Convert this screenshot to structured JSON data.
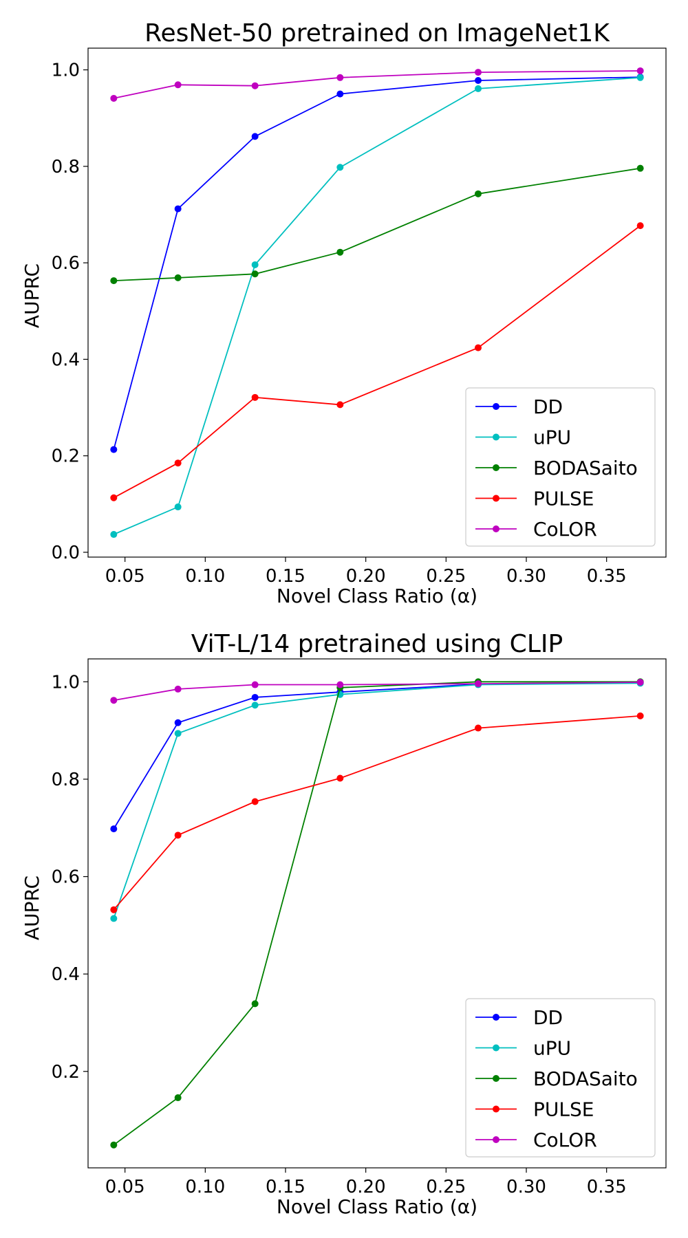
{
  "chart_data": [
    {
      "type": "line",
      "title": "ResNet-50 pretrained on ImageNet1K",
      "xlabel": "Novel Class Ratio (α)",
      "ylabel": "AUPRC",
      "x": [
        0.043,
        0.083,
        0.131,
        0.184,
        0.27,
        0.371
      ],
      "xlim": [
        0.027,
        0.387
      ],
      "ylim": [
        -0.01,
        1.045
      ],
      "xticks": [
        0.05,
        0.1,
        0.15,
        0.2,
        0.25,
        0.3,
        0.35
      ],
      "xtick_labels": [
        "0.05",
        "0.10",
        "0.15",
        "0.20",
        "0.25",
        "0.30",
        "0.35"
      ],
      "yticks": [
        0.0,
        0.2,
        0.4,
        0.6,
        0.8,
        1.0
      ],
      "ytick_labels": [
        "0.0",
        "0.2",
        "0.4",
        "0.6",
        "0.8",
        "1.0"
      ],
      "legend_position": "lower-right",
      "series": [
        {
          "name": "DD",
          "color": "#0000ff",
          "values": [
            0.213,
            0.712,
            0.862,
            0.95,
            0.978,
            0.985
          ]
        },
        {
          "name": "uPU",
          "color": "#00bfbf",
          "values": [
            0.037,
            0.094,
            0.596,
            0.798,
            0.961,
            0.984
          ]
        },
        {
          "name": "BODASaito",
          "color": "#008000",
          "values": [
            0.563,
            0.569,
            0.577,
            0.622,
            0.743,
            0.796
          ]
        },
        {
          "name": "PULSE",
          "color": "#ff0000",
          "values": [
            0.113,
            0.185,
            0.321,
            0.306,
            0.424,
            0.677
          ]
        },
        {
          "name": "CoLOR",
          "color": "#bf00bf",
          "values": [
            0.941,
            0.969,
            0.967,
            0.984,
            0.995,
            0.998
          ]
        }
      ]
    },
    {
      "type": "line",
      "title": "ViT-L/14 pretrained using CLIP",
      "xlabel": "Novel Class Ratio (α)",
      "ylabel": "AUPRC",
      "x": [
        0.043,
        0.083,
        0.131,
        0.184,
        0.27,
        0.371
      ],
      "xlim": [
        0.027,
        0.387
      ],
      "ylim": [
        0.002,
        1.047
      ],
      "xticks": [
        0.05,
        0.1,
        0.15,
        0.2,
        0.25,
        0.3,
        0.35
      ],
      "xtick_labels": [
        "0.05",
        "0.10",
        "0.15",
        "0.20",
        "0.25",
        "0.30",
        "0.35"
      ],
      "yticks": [
        0.2,
        0.4,
        0.6,
        0.8,
        1.0
      ],
      "ytick_labels": [
        "0.2",
        "0.4",
        "0.6",
        "0.8",
        "1.0"
      ],
      "legend_position": "lower-right",
      "series": [
        {
          "name": "DD",
          "color": "#0000ff",
          "values": [
            0.698,
            0.916,
            0.968,
            0.979,
            0.995,
            0.998
          ]
        },
        {
          "name": "uPU",
          "color": "#00bfbf",
          "values": [
            0.514,
            0.894,
            0.952,
            0.974,
            0.994,
            0.997
          ]
        },
        {
          "name": "BODASaito",
          "color": "#008000",
          "values": [
            0.049,
            0.146,
            0.339,
            0.988,
            1.0,
            1.0
          ]
        },
        {
          "name": "PULSE",
          "color": "#ff0000",
          "values": [
            0.532,
            0.685,
            0.754,
            0.802,
            0.905,
            0.93
          ]
        },
        {
          "name": "CoLOR",
          "color": "#bf00bf",
          "values": [
            0.962,
            0.985,
            0.994,
            0.994,
            0.996,
            0.999
          ]
        }
      ]
    }
  ]
}
